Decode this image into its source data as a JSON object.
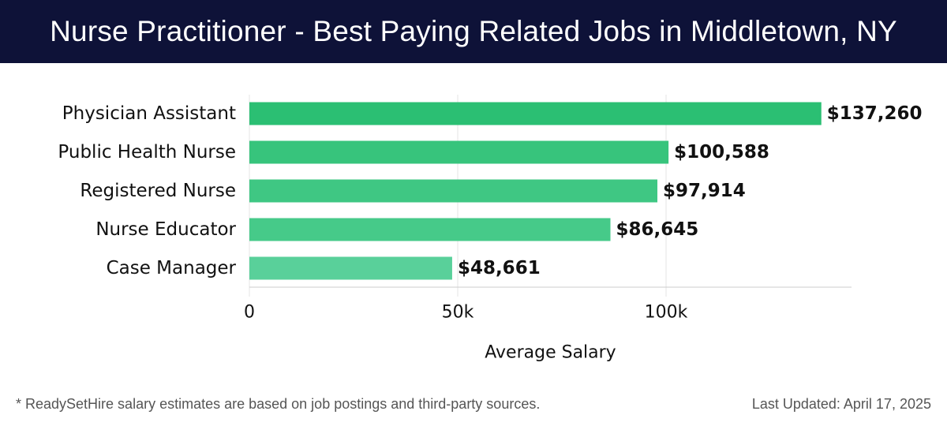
{
  "page": {
    "title": "Nurse Practitioner - Best Paying Related Jobs in Middletown, NY",
    "footnote": "* ReadySetHire salary estimates are based on job postings and third-party sources.",
    "last_updated": "Last Updated: April 17, 2025"
  },
  "colors": {
    "header_bg": "#0e1238",
    "bar_colors": [
      "#2bbf73",
      "#37c47c",
      "#3fc783",
      "#46ca89",
      "#59d09a"
    ],
    "grid": "#e4e4e4",
    "axis": "#cccccc"
  },
  "chart_data": {
    "type": "bar",
    "orientation": "horizontal",
    "categories": [
      "Physician Assistant",
      "Public Health Nurse",
      "Registered Nurse",
      "Nurse Educator",
      "Case Manager"
    ],
    "values": [
      137260,
      100588,
      97914,
      86645,
      48661
    ],
    "value_labels": [
      "$137,260",
      "$100,588",
      "$97,914",
      "$86,645",
      "$48,661"
    ],
    "xlabel": "Average Salary",
    "ylabel": "",
    "xlim": [
      0,
      144500
    ],
    "xticks": [
      0,
      50000,
      100000
    ],
    "xtick_labels": [
      "0",
      "50k",
      "100k"
    ],
    "grid": true
  }
}
